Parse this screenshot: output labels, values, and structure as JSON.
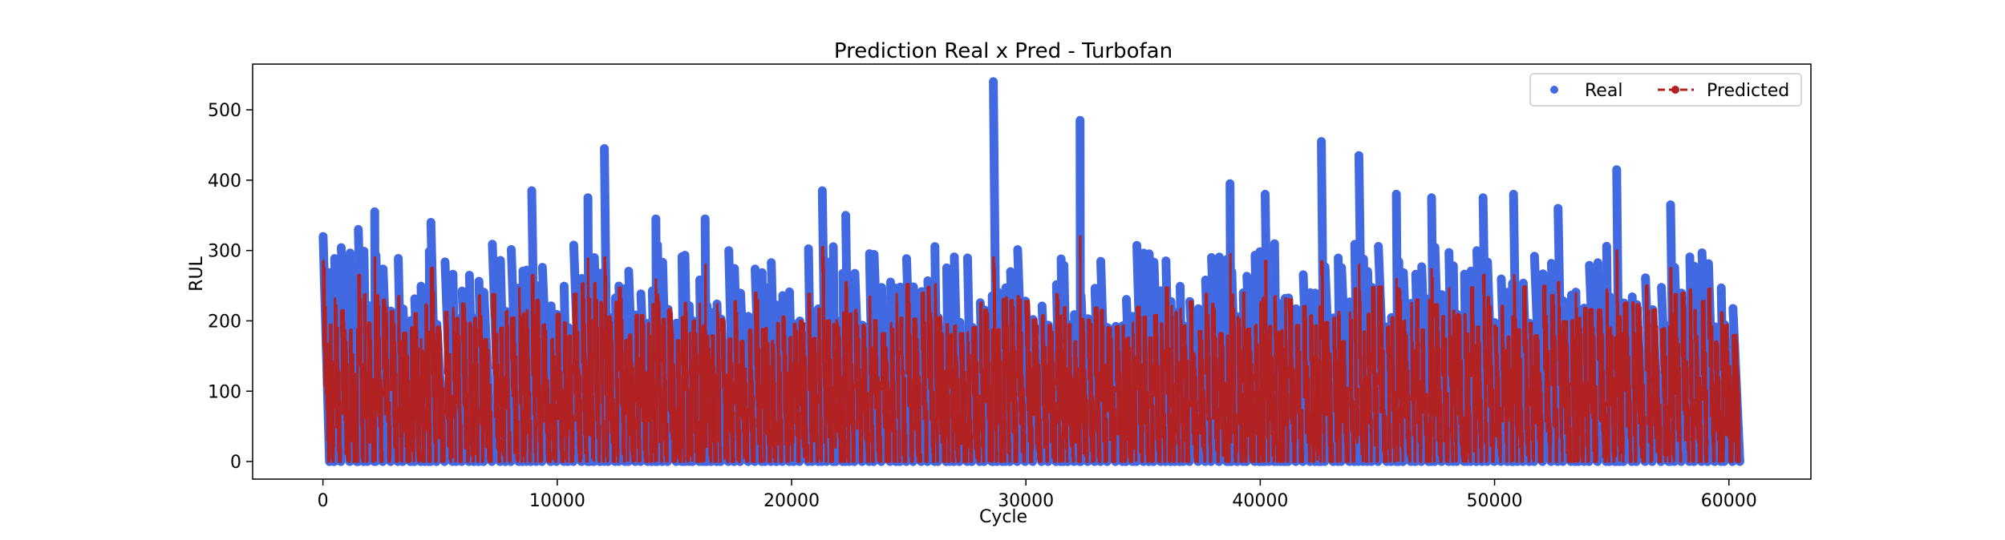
{
  "chart_data": {
    "type": "scatter",
    "title": "Prediction Real x Pred - Turbofan",
    "xlabel": "Cycle",
    "ylabel": "RUL",
    "xlim": [
      -3000,
      63500
    ],
    "ylim": [
      -25,
      565
    ],
    "xticks": [
      0,
      10000,
      20000,
      30000,
      40000,
      50000,
      60000
    ],
    "xtick_labels": [
      "0",
      "10000",
      "20000",
      "30000",
      "40000",
      "50000",
      "60000"
    ],
    "yticks": [
      0,
      100,
      200,
      300,
      400,
      500
    ],
    "ytick_labels": [
      "0",
      "100",
      "200",
      "300",
      "400",
      "500"
    ],
    "grid": false,
    "legend_position": "top-right",
    "series": [
      {
        "name": "Real",
        "color": "#4169e1",
        "marker": "circle",
        "note_peaks_x": [
          0,
          1500,
          2200,
          4600,
          8900,
          11300,
          12000,
          14200,
          16300,
          21300,
          22300,
          28600,
          32300,
          38700,
          40200,
          42600,
          44200,
          45800,
          47300,
          49500,
          50800,
          52700,
          55200,
          57500,
          59100
        ],
        "note_peaks_y": [
          320,
          330,
          355,
          340,
          385,
          375,
          445,
          345,
          345,
          385,
          350,
          540,
          485,
          395,
          380,
          455,
          435,
          380,
          375,
          375,
          380,
          360,
          415,
          365,
          325
        ]
      },
      {
        "name": "Predicted",
        "color": "#b22222",
        "marker": "circle-dashed-line",
        "note_peaks_x": [
          0,
          1500,
          2600,
          4600,
          8900,
          11300,
          12000,
          14200,
          16300,
          21300,
          22300,
          28600,
          32300,
          38700,
          40200,
          42600,
          44200,
          45800,
          47300,
          49500,
          50800,
          52700,
          55200,
          57500,
          59100
        ],
        "note_peaks_y": [
          285,
          265,
          290,
          275,
          265,
          290,
          290,
          260,
          280,
          305,
          255,
          290,
          320,
          295,
          285,
          285,
          280,
          260,
          275,
          265,
          265,
          255,
          300,
          275,
          275
        ]
      }
    ]
  }
}
